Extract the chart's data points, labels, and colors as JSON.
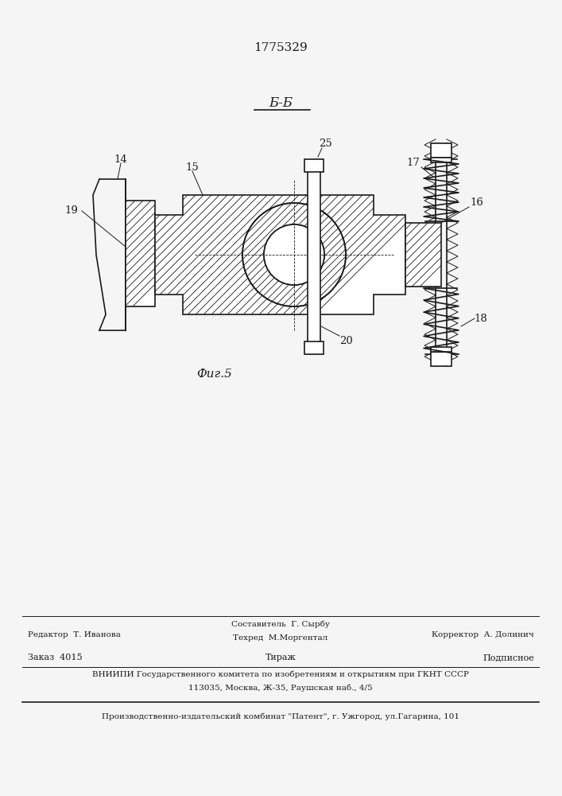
{
  "patent_number": "1775329",
  "section_label": "Б-Б",
  "fig_label": "Фиг.5",
  "bg_color": "#f5f5f5",
  "line_color": "#1a1a1a",
  "footer": {
    "line1_left": "Редактор  Т. Иванова",
    "line1_center_top": "Составитель  Г. Сырбу",
    "line1_center_bot": "Техред  М.Моргентал",
    "line1_right": "Корректор  А. Долинич",
    "line2_left": "Заказ  4015",
    "line2_center": "Тираж",
    "line2_right": "Подписное",
    "line3": "ВНИИПИ Государственного комитета по изобретениям и открытиям при ГКНТ СССР",
    "line4": "113035, Москва, Ж-35, Раушская наб., 4/5",
    "line5": "Производственно-издательский комбинат \"Патент\", г. Ужгород, ул.Гагарина, 101"
  }
}
